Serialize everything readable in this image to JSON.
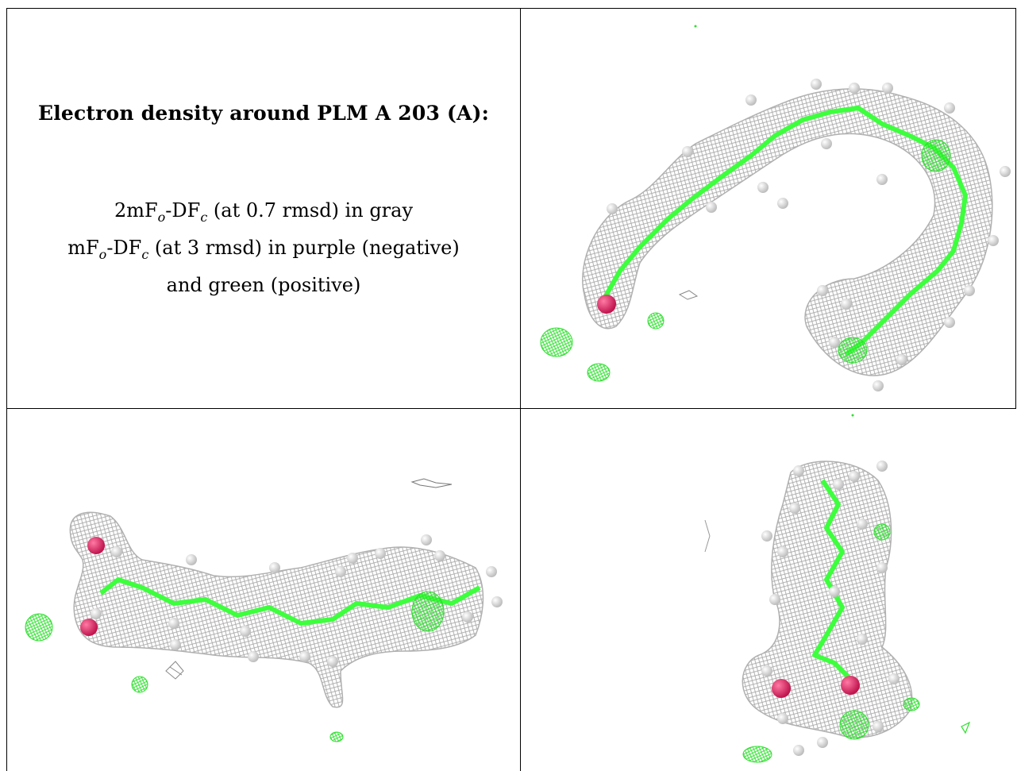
{
  "caption": {
    "title": "Electron density around PLM A 203 (A):",
    "line1": {
      "prefix": "2mF",
      "sub_o": "o",
      "mid": "-DF",
      "sub_c": "c",
      "suffix": " (at 0.7 rmsd) in gray"
    },
    "line2": {
      "prefix": "mF",
      "sub_o": "o",
      "mid": "-DF",
      "sub_c": "c",
      "suffix": " (at 3 rmsd) in purple (negative)"
    },
    "line3": "and green (positive)"
  },
  "colors": {
    "mesh_gray": "#a8a8a8",
    "mesh_green": "#2ee02e",
    "bond_green": "#3dff3d",
    "oxygen": "#e0306a",
    "hydrogen": "#e6e6e6",
    "border": "#000000"
  },
  "panels": [
    {
      "name": "view-top-right",
      "molecule": "PLM A 203"
    },
    {
      "name": "view-bottom-left",
      "molecule": "PLM A 203"
    },
    {
      "name": "view-bottom-right",
      "molecule": "PLM A 203"
    }
  ]
}
